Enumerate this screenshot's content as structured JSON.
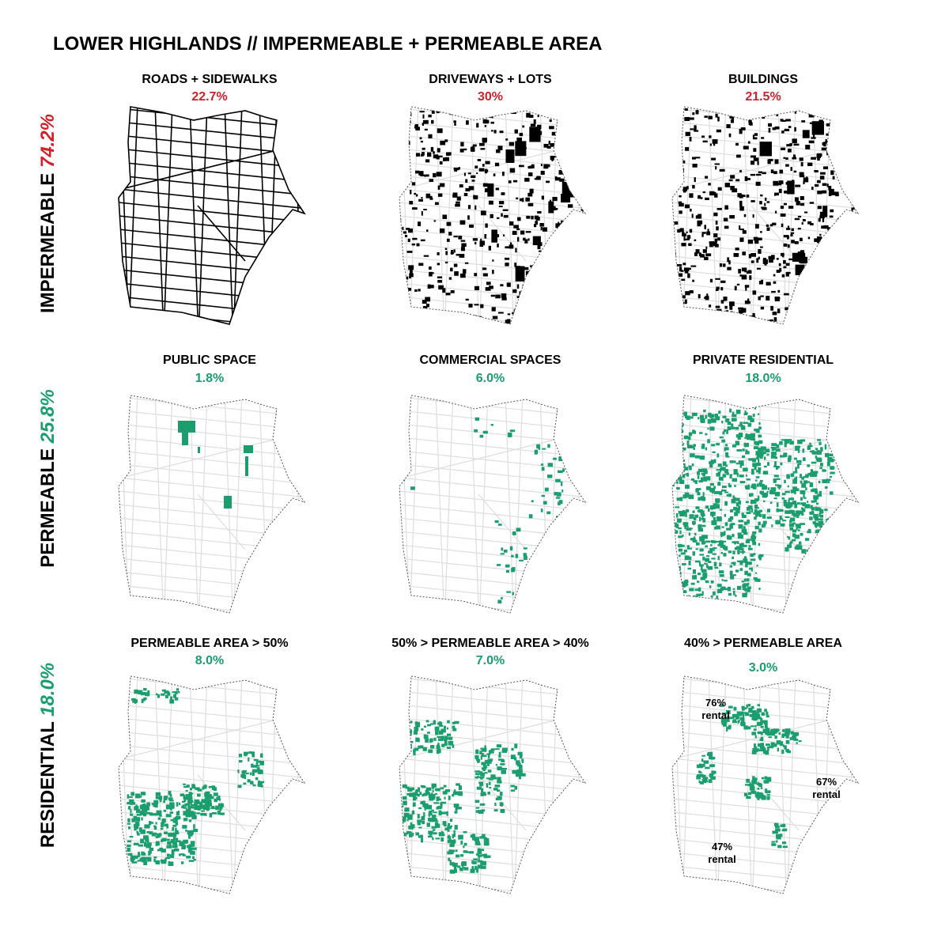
{
  "title": "LOWER HIGHLANDS // IMPERMEABLE + PERMEABLE AREA",
  "rows": [
    {
      "label": "IMPERMEABLE",
      "value": "74.2%",
      "panels": [
        {
          "title": "ROADS + SIDEWALKS",
          "value": "22.7%"
        },
        {
          "title": "DRIVEWAYS + LOTS",
          "value": "30%"
        },
        {
          "title": "BUILDINGS",
          "value": "21.5%"
        }
      ]
    },
    {
      "label": "PERMEABLE",
      "value": "25.8%",
      "panels": [
        {
          "title": "PUBLIC SPACE",
          "value": "1.8%"
        },
        {
          "title": "COMMERCIAL SPACES",
          "value": "6.0%"
        },
        {
          "title": "PRIVATE RESIDENTIAL",
          "value": "18.0%"
        }
      ]
    },
    {
      "label": "RESIDENTIAL",
      "value": "18.0%",
      "panels": [
        {
          "title": "PERMEABLE AREA > 50%",
          "value": "8.0%"
        },
        {
          "title": "50% > PERMEABLE AREA > 40%",
          "value": "7.0%"
        },
        {
          "title": "40% > PERMEABLE AREA",
          "value": "3.0%"
        }
      ]
    }
  ],
  "annotations": [
    {
      "lines": [
        "76%",
        "rental"
      ]
    },
    {
      "lines": [
        "67%",
        "rental"
      ]
    },
    {
      "lines": [
        "47%",
        "rental"
      ]
    }
  ]
}
